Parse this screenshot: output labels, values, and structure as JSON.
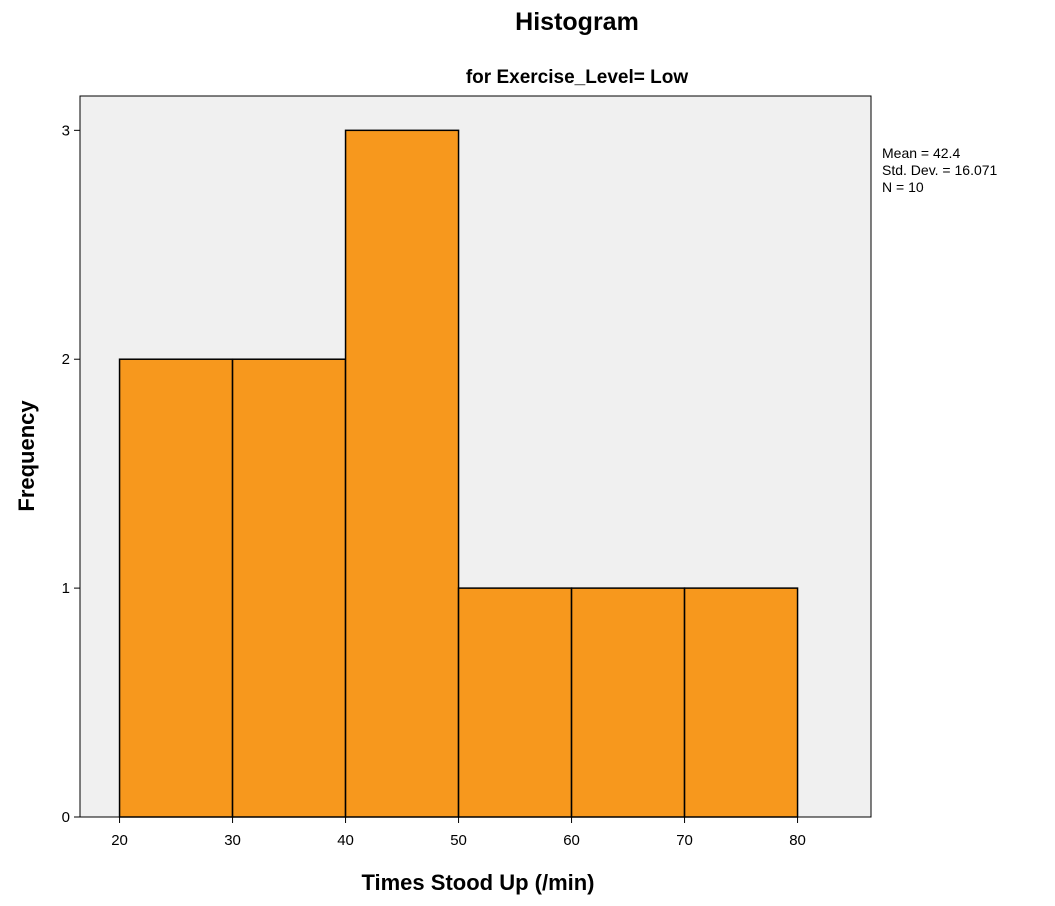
{
  "chart_data": {
    "type": "bar",
    "title": "Histogram",
    "subtitle": "for Exercise_Level= Low",
    "xlabel": "Times Stood Up (/min)",
    "ylabel": "Frequency",
    "bins": [
      {
        "start": 20,
        "end": 30,
        "count": 2
      },
      {
        "start": 30,
        "end": 40,
        "count": 2
      },
      {
        "start": 40,
        "end": 50,
        "count": 3
      },
      {
        "start": 50,
        "end": 60,
        "count": 1
      },
      {
        "start": 60,
        "end": 70,
        "count": 1
      },
      {
        "start": 70,
        "end": 80,
        "count": 1
      }
    ],
    "x_ticks": [
      "20",
      "30",
      "40",
      "50",
      "60",
      "70",
      "80"
    ],
    "y_ticks": [
      "0",
      "1",
      "2",
      "3"
    ],
    "xlim": [
      16.5,
      86.5
    ],
    "ylim": [
      0,
      3.15
    ],
    "grid": false,
    "legend": "none",
    "stats": {
      "mean": "Mean = 42.4",
      "std_dev": "Std. Dev. = 16.071",
      "n": "N = 10"
    },
    "colors": {
      "bar_fill": "#F7981D",
      "bar_stroke": "#000000",
      "plot_background": "#F0F0F0"
    }
  }
}
